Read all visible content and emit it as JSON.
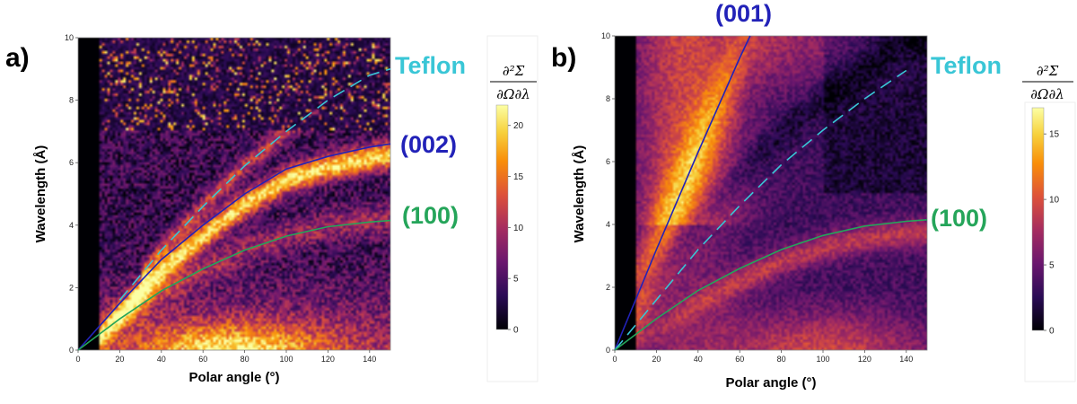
{
  "chart_data": [
    {
      "type": "heatmap",
      "panel_label": "a)",
      "xlabel": "Polar angle (°)",
      "ylabel": "Wavelength (Å)",
      "xlim": [
        0,
        150
      ],
      "ylim": [
        0,
        10
      ],
      "x_ticks": [
        "0",
        "20",
        "40",
        "60",
        "80",
        "100",
        "120",
        "140"
      ],
      "y_ticks": [
        "0",
        "2",
        "4",
        "6",
        "8",
        "10"
      ],
      "colorbar": {
        "label_numerator": "∂²Σ",
        "label_denominator": "∂Ω∂λ",
        "range": [
          0,
          22
        ],
        "ticks": [
          "0",
          "5",
          "10",
          "15",
          "20"
        ],
        "colormap": "inferno"
      },
      "annotations": [
        {
          "text": "Teflon",
          "color": "#39c6d6",
          "line": "dashed"
        },
        {
          "text": "(002)",
          "color": "#2222b8",
          "line": "solid"
        },
        {
          "text": "(100)",
          "color": "#25a55a",
          "line": "solid"
        }
      ],
      "features": {
        "masked_angle_range": [
          0,
          10
        ],
        "curves": [
          {
            "name": "Teflon",
            "x": [
              20,
              40,
              60,
              80,
              100,
              120,
              140,
              150
            ],
            "y": [
              1.6,
              3.2,
              4.6,
              5.9,
              7.0,
              8.0,
              8.8,
              9.0
            ]
          },
          {
            "name": "(002)",
            "x": [
              0,
              20,
              40,
              60,
              80,
              100,
              120,
              140,
              150
            ],
            "y": [
              0,
              1.5,
              2.9,
              4.0,
              5.0,
              5.8,
              6.2,
              6.5,
              6.6
            ]
          },
          {
            "name": "(100)",
            "x": [
              0,
              20,
              40,
              60,
              80,
              100,
              120,
              140,
              150
            ],
            "y": [
              0,
              1.0,
              1.9,
              2.6,
              3.2,
              3.65,
              3.95,
              4.1,
              4.15
            ]
          }
        ]
      }
    },
    {
      "type": "heatmap",
      "panel_label": "b)",
      "xlabel": "Polar angle (°)",
      "ylabel": "Wavelength (Å)",
      "xlim": [
        0,
        150
      ],
      "ylim": [
        0,
        10
      ],
      "x_ticks": [
        "0",
        "20",
        "40",
        "60",
        "80",
        "100",
        "120",
        "140"
      ],
      "y_ticks": [
        "0",
        "2",
        "4",
        "6",
        "8",
        "10"
      ],
      "colorbar": {
        "label_numerator": "∂²Σ",
        "label_denominator": "∂Ω∂λ",
        "range": [
          0,
          17
        ],
        "ticks": [
          "0",
          "5",
          "10",
          "15"
        ],
        "colormap": "inferno"
      },
      "annotations": [
        {
          "text": "(001)",
          "color": "#2222b8",
          "line": "solid"
        },
        {
          "text": "Teflon",
          "color": "#39c6d6",
          "line": "dashed"
        },
        {
          "text": "(100)",
          "color": "#25a55a",
          "line": "solid"
        }
      ],
      "features": {
        "masked_angle_range": [
          0,
          10
        ],
        "curves": [
          {
            "name": "(001)",
            "x": [
              0,
              20,
              40,
              60,
              65
            ],
            "y": [
              0,
              3.2,
              6.3,
              9.3,
              10.0
            ]
          },
          {
            "name": "Teflon",
            "x": [
              0,
              20,
              40,
              60,
              80,
              100,
              120,
              140
            ],
            "y": [
              0,
              1.6,
              3.2,
              4.6,
              5.9,
              7.0,
              8.0,
              8.9
            ]
          },
          {
            "name": "(100)",
            "x": [
              0,
              20,
              40,
              60,
              80,
              100,
              120,
              140,
              150
            ],
            "y": [
              0,
              1.0,
              1.9,
              2.6,
              3.2,
              3.65,
              3.95,
              4.1,
              4.15
            ]
          }
        ]
      }
    }
  ]
}
